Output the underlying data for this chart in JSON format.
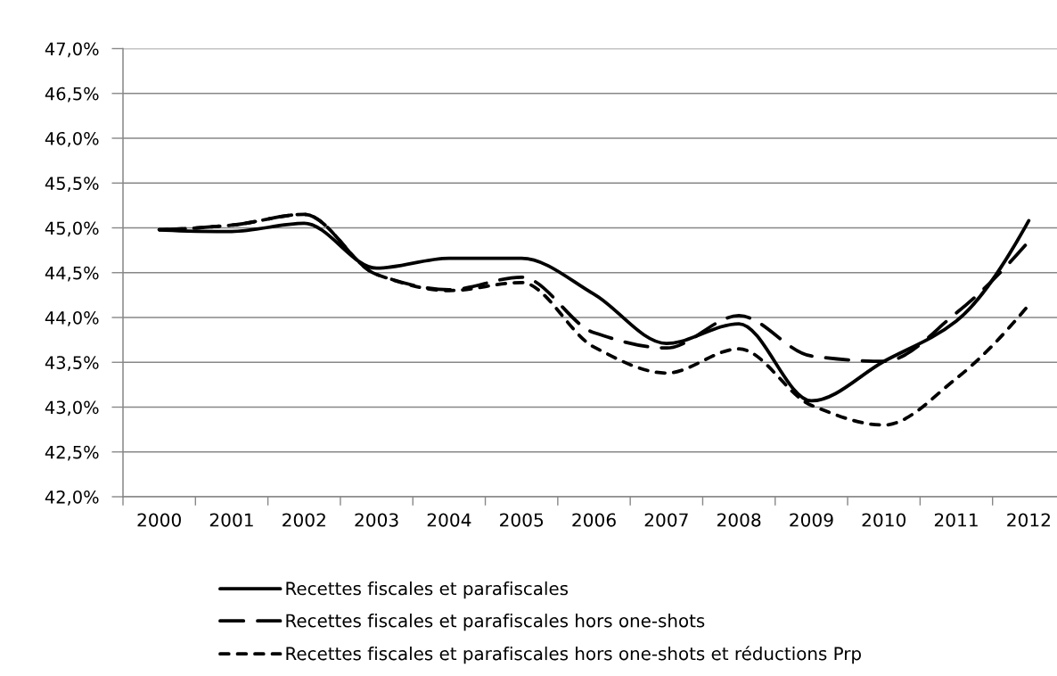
{
  "chart_data": {
    "type": "line",
    "categories": [
      "2000",
      "2001",
      "2002",
      "2003",
      "2004",
      "2005",
      "2006",
      "2007",
      "2008",
      "2009",
      "2010",
      "2011",
      "2012"
    ],
    "series": [
      {
        "name": "Recettes fiscales et parafiscales",
        "color": "#000000",
        "line_style": "solid",
        "values": [
          44.98,
          44.96,
          45.05,
          44.55,
          44.66,
          44.66,
          44.26,
          43.71,
          43.93,
          43.07,
          43.51,
          43.96,
          45.08
        ]
      },
      {
        "name": "Recettes fiscales et parafiscales hors one-shots",
        "color": "#000000",
        "line_style": "dashed",
        "values": [
          44.98,
          45.03,
          45.15,
          44.48,
          44.31,
          44.45,
          43.83,
          43.66,
          44.02,
          43.57,
          43.51,
          44.05,
          44.85
        ]
      },
      {
        "name": "Recettes fiscales et parafiscales hors one-shots et réductions Prp",
        "color": "#000000",
        "line_style": "dashed",
        "values": [
          44.98,
          45.03,
          45.15,
          44.48,
          44.3,
          44.39,
          43.67,
          43.38,
          43.65,
          43.02,
          42.8,
          43.32,
          44.14
        ]
      }
    ],
    "ylim": [
      42.0,
      47.0
    ],
    "yticks": [
      {
        "value": 42.0,
        "label": "42,0%"
      },
      {
        "value": 42.5,
        "label": "42,5%"
      },
      {
        "value": 43.0,
        "label": "43,0%"
      },
      {
        "value": 43.5,
        "label": "43,5%"
      },
      {
        "value": 44.0,
        "label": "44,0%"
      },
      {
        "value": 44.5,
        "label": "44,5%"
      },
      {
        "value": 45.0,
        "label": "45,0%"
      },
      {
        "value": 45.5,
        "label": "45,5%"
      },
      {
        "value": 46.0,
        "label": "46,0%"
      },
      {
        "value": 46.5,
        "label": "46,5%"
      },
      {
        "value": 47.0,
        "label": "47,0%"
      }
    ],
    "grid": "y",
    "legend": "bottom"
  }
}
